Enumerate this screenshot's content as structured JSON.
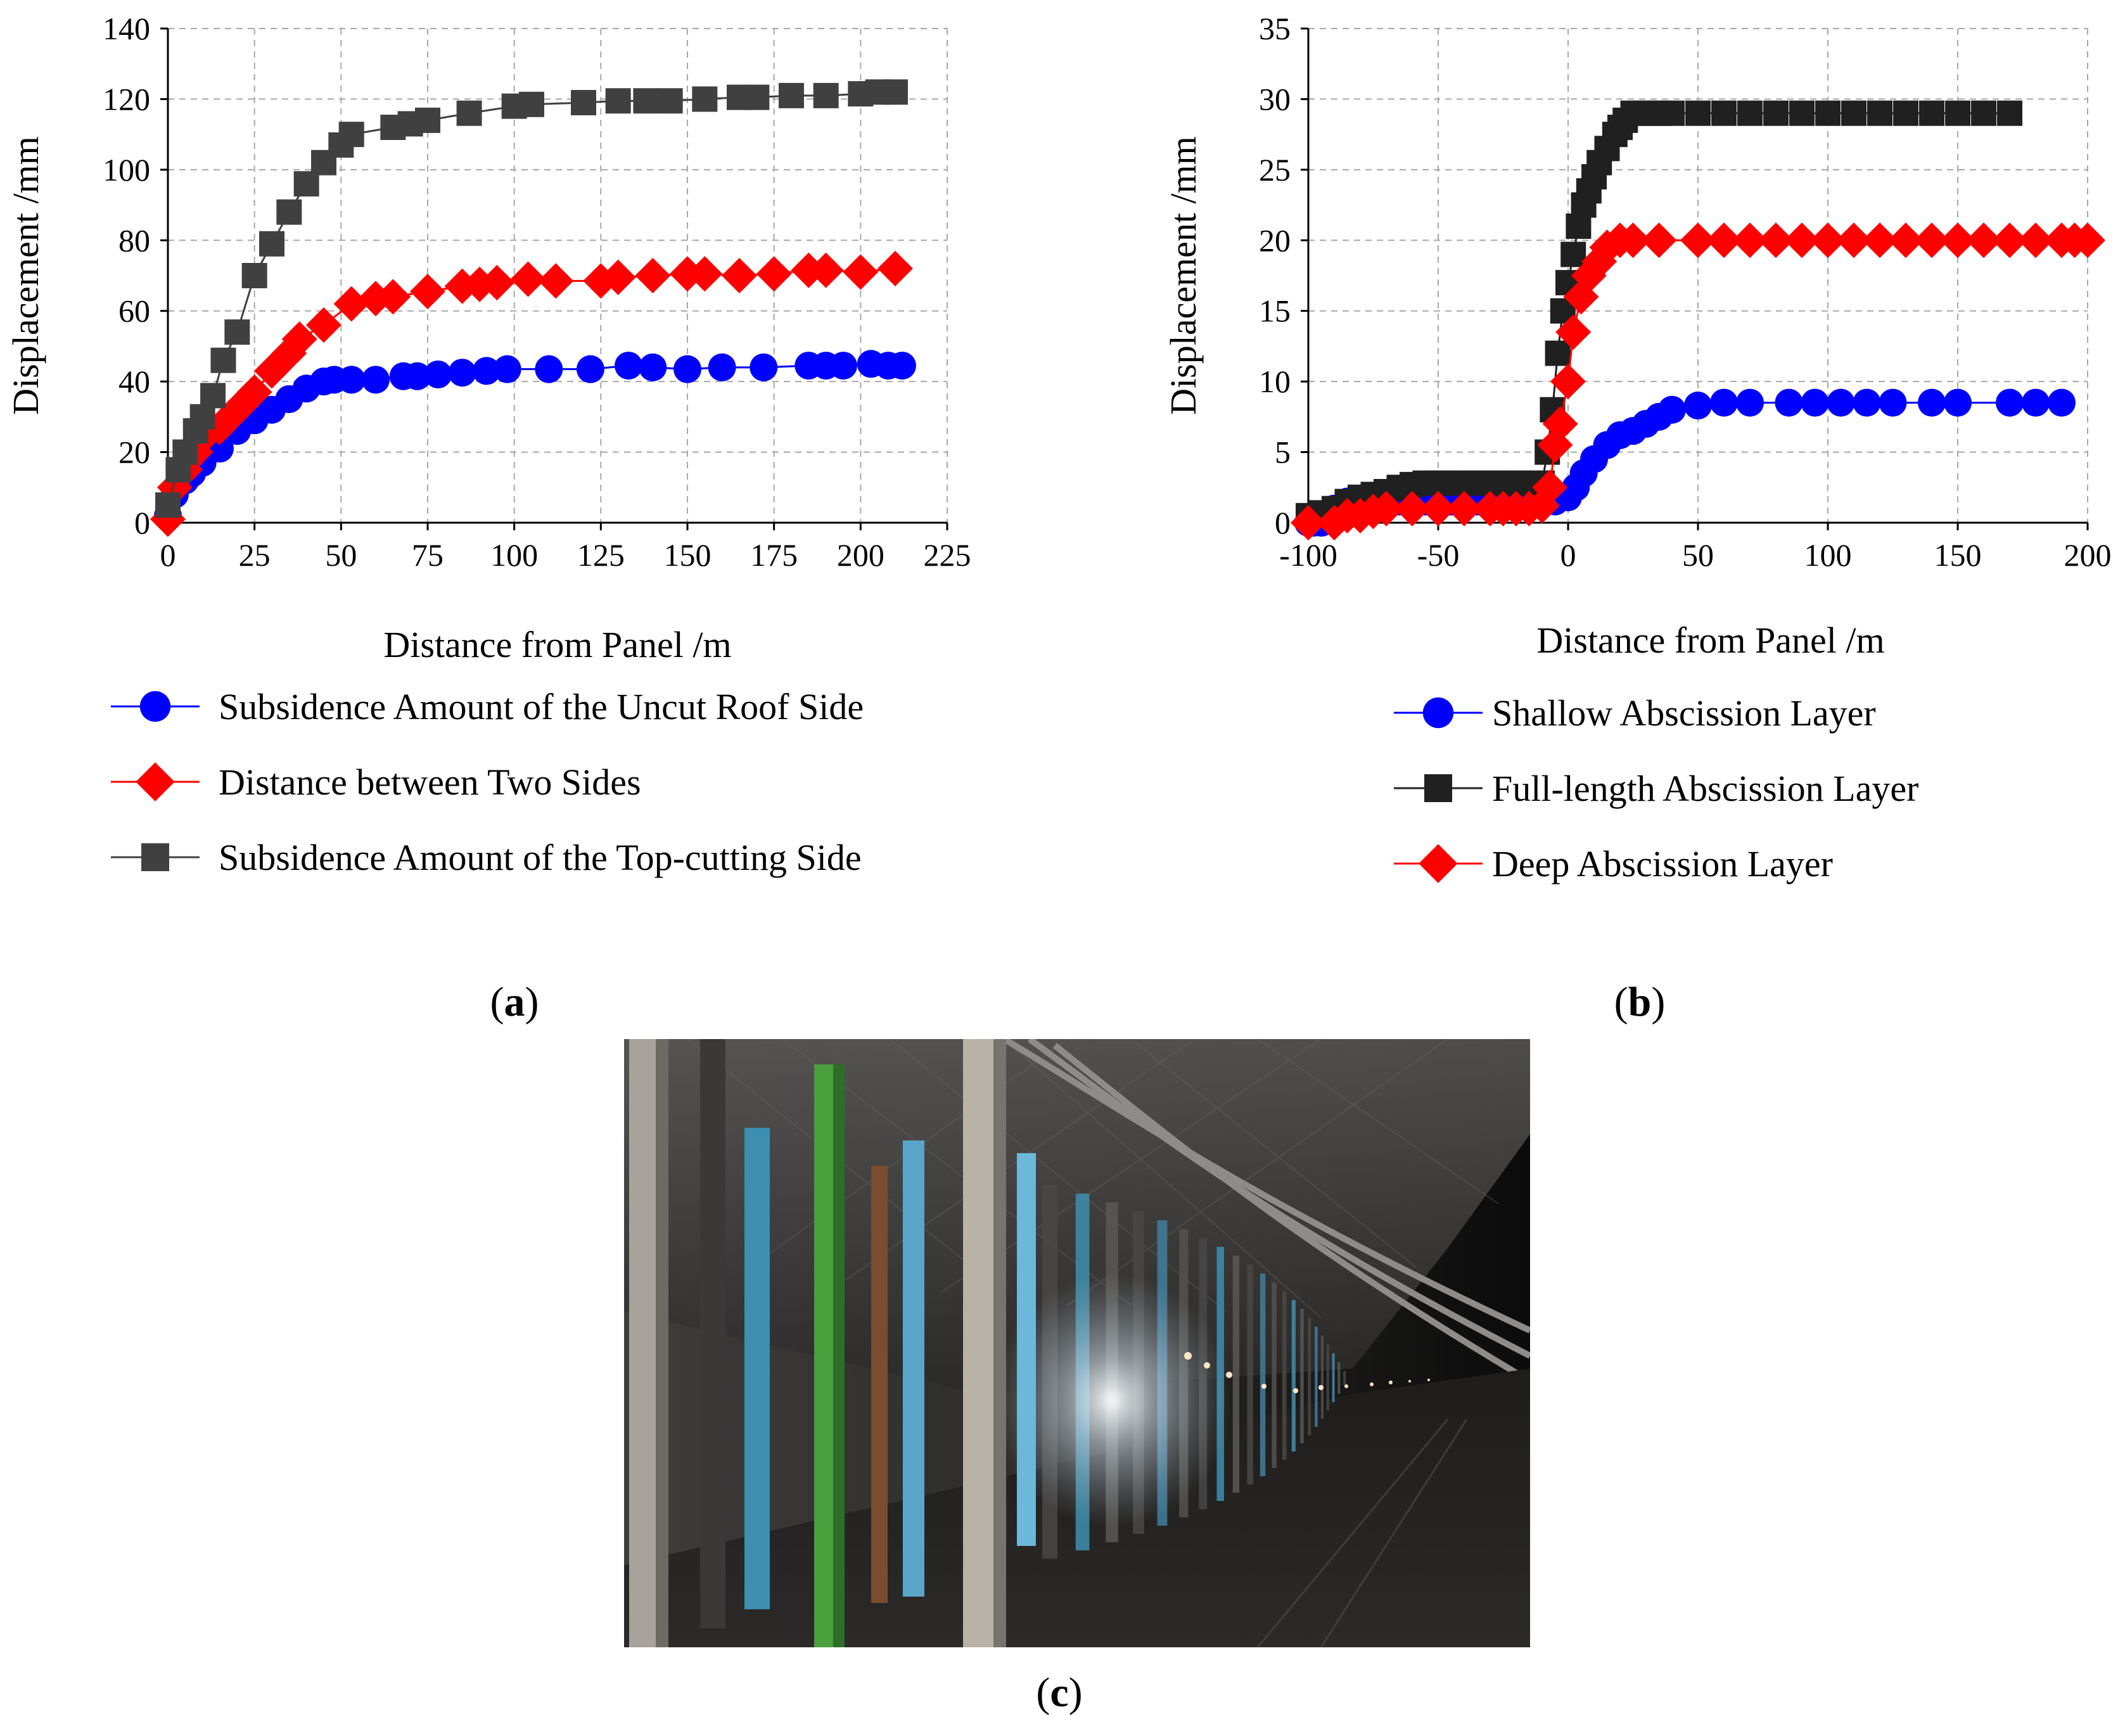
{
  "chart_data": [
    {
      "id": "a",
      "type": "line",
      "panel_label": "a",
      "xlabel": "Distance from Panel /m",
      "ylabel": "Displacement /mm",
      "xlim": [
        0,
        225
      ],
      "ylim": [
        0,
        140
      ],
      "xticks": [
        0,
        25,
        50,
        75,
        100,
        125,
        150,
        175,
        200,
        225
      ],
      "yticks": [
        0,
        20,
        40,
        60,
        80,
        100,
        120,
        140
      ],
      "grid": true,
      "legend_position": "below",
      "series": [
        {
          "name": "Subsidence Amount of the Uncut Roof Side",
          "color": "#0000ff",
          "marker": "circle",
          "x": [
            0,
            2,
            5,
            7,
            10,
            15,
            20,
            25,
            30,
            35,
            40,
            45,
            48,
            53,
            60,
            68,
            72,
            78,
            85,
            92,
            98,
            110,
            122,
            133,
            140,
            150,
            160,
            172,
            185,
            190,
            195,
            203,
            208,
            212
          ],
          "y": [
            2,
            8,
            12,
            14,
            17,
            21,
            26,
            29,
            32,
            35,
            38,
            40,
            40.5,
            40.5,
            40.5,
            41.5,
            41.5,
            42,
            42.5,
            43,
            43.5,
            43.5,
            43.5,
            44.5,
            44,
            43.5,
            44,
            44,
            44.5,
            44.5,
            44.5,
            45,
            44.5,
            44.5
          ]
        },
        {
          "name": "Distance between Two Sides",
          "color": "#ff0000",
          "marker": "diamond",
          "x": [
            0,
            2,
            5,
            8,
            10,
            15,
            20,
            25,
            30,
            35,
            38,
            45,
            53,
            60,
            65,
            75,
            85,
            90,
            95,
            104,
            112,
            125,
            130,
            140,
            150,
            155,
            165,
            175,
            185,
            190,
            200,
            210
          ],
          "y": [
            1,
            10,
            15,
            20,
            24,
            27,
            32,
            37,
            43,
            48,
            52,
            56,
            62,
            63.5,
            64,
            65.5,
            67,
            67.5,
            68,
            69,
            68.5,
            68.5,
            69.5,
            70,
            70.5,
            70.5,
            70,
            70.5,
            71.5,
            71.5,
            71,
            72
          ]
        },
        {
          "name": "Subsidence Amount of the Top-cutting Side",
          "color": "#404040",
          "marker": "square",
          "x": [
            0,
            3,
            5,
            8,
            10,
            13,
            16,
            20,
            25,
            30,
            35,
            40,
            45,
            50,
            53,
            65,
            70,
            75,
            87,
            100,
            105,
            120,
            130,
            138,
            145,
            155,
            165,
            170,
            180,
            190,
            200,
            205,
            210
          ],
          "y": [
            5,
            15,
            20,
            26,
            30,
            36,
            46,
            54,
            70,
            79,
            88,
            96,
            102,
            107,
            110,
            112,
            113,
            114,
            116,
            118,
            118.5,
            119,
            119.5,
            119.5,
            119.5,
            120,
            120.5,
            120.5,
            121,
            121,
            121.5,
            122,
            122
          ]
        }
      ]
    },
    {
      "id": "b",
      "type": "line",
      "panel_label": "b",
      "xlabel": "Distance from Panel /m",
      "ylabel": "Displacement /mm",
      "xlim": [
        -100,
        200
      ],
      "ylim": [
        0,
        35
      ],
      "xticks": [
        -100,
        -50,
        0,
        50,
        100,
        150,
        200
      ],
      "yticks": [
        0,
        5,
        10,
        15,
        20,
        25,
        30,
        35
      ],
      "grid": true,
      "legend_position": "below",
      "series": [
        {
          "name": "Shallow Abscission Layer",
          "color": "#0000ff",
          "marker": "circle",
          "x": [
            -100,
            -98,
            -95,
            -90,
            -85,
            -80,
            -75,
            -70,
            -65,
            -60,
            -55,
            -50,
            -45,
            -40,
            -35,
            -30,
            -25,
            -20,
            -15,
            -10,
            -5,
            0,
            3,
            6,
            10,
            15,
            20,
            25,
            30,
            35,
            40,
            50,
            60,
            70,
            85,
            95,
            105,
            115,
            125,
            140,
            150,
            170,
            180,
            190
          ],
          "y": [
            0,
            0,
            0,
            1,
            1.5,
            1.5,
            1.5,
            1.5,
            1.5,
            1.5,
            1.5,
            1.5,
            1.5,
            1.5,
            1.5,
            1.5,
            1.5,
            1.5,
            1.5,
            1.5,
            1.5,
            1.8,
            2.5,
            3.5,
            4.5,
            5.5,
            6.2,
            6.5,
            7,
            7.5,
            8,
            8.3,
            8.5,
            8.5,
            8.5,
            8.5,
            8.5,
            8.5,
            8.5,
            8.5,
            8.5,
            8.5,
            8.5,
            8.5
          ]
        },
        {
          "name": "Full-length Abscission Layer",
          "color": "#202020",
          "marker": "square",
          "x": [
            -100,
            -95,
            -90,
            -85,
            -80,
            -75,
            -70,
            -65,
            -60,
            -55,
            -50,
            -45,
            -40,
            -35,
            -30,
            -25,
            -20,
            -15,
            -10,
            -8,
            -6,
            -4,
            -2,
            0,
            2,
            4,
            6,
            8,
            10,
            12,
            15,
            18,
            20,
            22,
            25,
            30,
            35,
            40,
            50,
            60,
            70,
            80,
            90,
            100,
            110,
            120,
            130,
            140,
            150,
            160,
            170
          ],
          "y": [
            0.5,
            0.7,
            1,
            1.5,
            1.8,
            2,
            2.2,
            2.5,
            2.7,
            2.8,
            2.8,
            2.8,
            2.8,
            2.8,
            2.8,
            2.8,
            2.8,
            2.8,
            2.8,
            5,
            8,
            12,
            15,
            17,
            19,
            21,
            22.5,
            23.5,
            24.5,
            25.5,
            26.5,
            27.5,
            28,
            28.5,
            29,
            29,
            29,
            29,
            29,
            29,
            29,
            29,
            29,
            29,
            29,
            29,
            29,
            29,
            29,
            29,
            29
          ]
        },
        {
          "name": "Deep Abscission Layer",
          "color": "#ff0000",
          "marker": "diamond",
          "x": [
            -100,
            -90,
            -85,
            -80,
            -75,
            -70,
            -60,
            -50,
            -40,
            -30,
            -25,
            -20,
            -15,
            -10,
            -7,
            -5,
            -3,
            0,
            2,
            5,
            8,
            12,
            15,
            20,
            25,
            35,
            50,
            60,
            70,
            80,
            90,
            100,
            110,
            120,
            130,
            140,
            150,
            160,
            170,
            180,
            190,
            195,
            200
          ],
          "y": [
            0,
            0,
            0.5,
            0.5,
            0.8,
            1,
            1,
            1,
            1,
            1,
            1,
            1,
            1,
            1.2,
            2.5,
            5.5,
            7,
            10,
            13.5,
            16,
            17.5,
            18.5,
            19.5,
            20,
            20,
            20,
            20,
            20,
            20,
            20,
            20,
            20,
            20,
            20,
            20,
            20,
            20,
            20,
            20,
            20,
            20,
            20,
            20
          ]
        }
      ]
    }
  ],
  "photo": {
    "panel_label": "c"
  }
}
